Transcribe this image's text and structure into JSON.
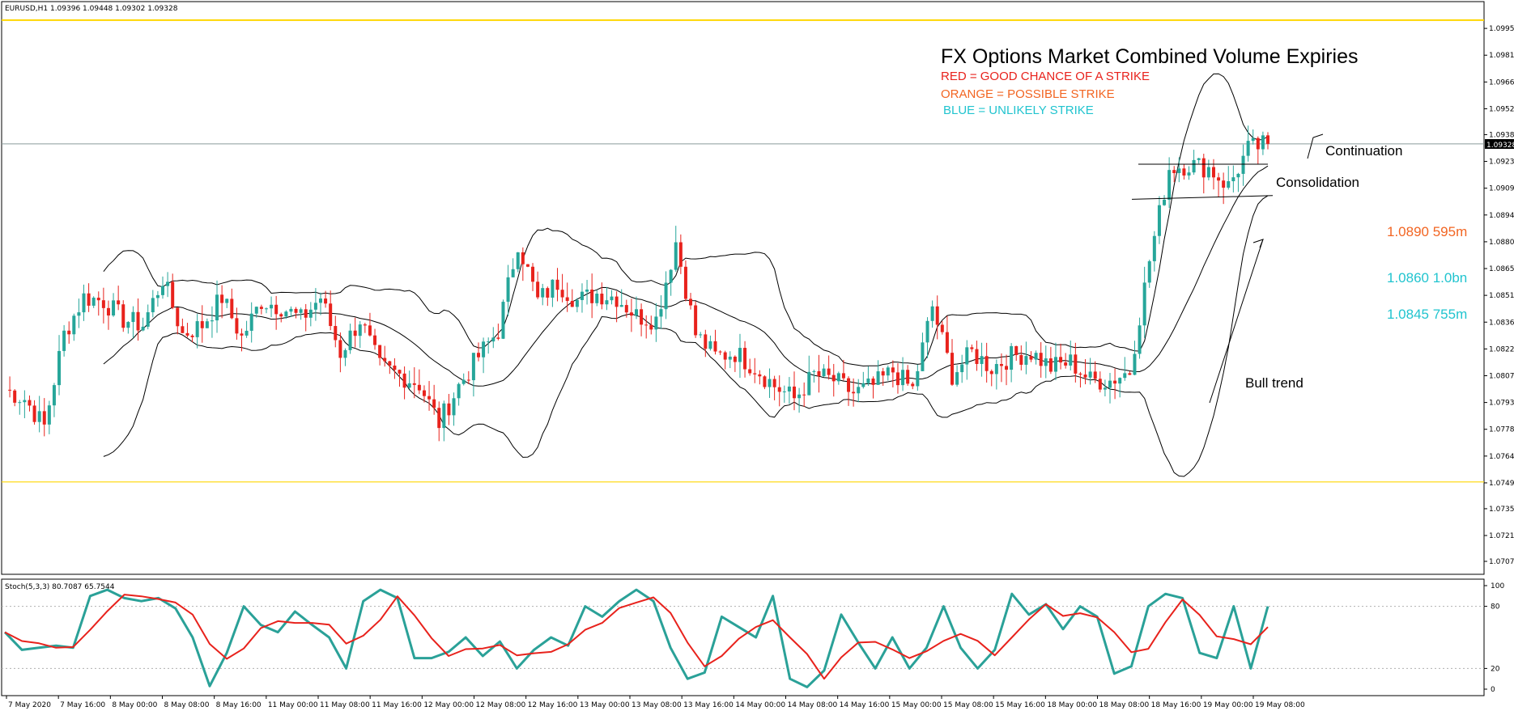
{
  "header": {
    "symbol_info": "EURUSD,H1  1.09396 1.09448 1.09302 1.09328"
  },
  "annotations": {
    "title": "FX Options Market Combined Volume Expiries",
    "legend_red": "RED = GOOD CHANCE OF A STRIKE",
    "legend_orange": "ORANGE = POSSIBLE STRIKE",
    "legend_blue": "BLUE = UNLIKELY STRIKE",
    "continuation": "Continuation",
    "consolidation": "Consolidation",
    "strike_1": "1.0890 595m",
    "strike_2": "1.0860 1.0bn",
    "strike_3": "1.0845 755m",
    "bull_trend": "Bull trend"
  },
  "colors": {
    "bull": "#26a69a",
    "bear": "#e8221c",
    "orange": "#f26522",
    "blue": "#21c4cf",
    "red": "#e8221c",
    "yellow_line": "#ffd600",
    "stoch_main": "#2aa198",
    "stoch_signal": "#e8221c"
  },
  "chart_data": [
    {
      "type": "candlestick",
      "symbol": "EURUSD",
      "timeframe": "H1",
      "current_price": "1.09328",
      "ylim": [
        1.07,
        1.101
      ],
      "yticks": [
        "1.09955",
        "1.09810",
        "1.09665",
        "1.09520",
        "1.09380",
        "1.09235",
        "1.09090",
        "1.08945",
        "1.08800",
        "1.08655",
        "1.08510",
        "1.08365",
        "1.08220",
        "1.08075",
        "1.07930",
        "1.07785",
        "1.07640",
        "1.07495",
        "1.07355",
        "1.07210",
        "1.07070"
      ],
      "xticks": [
        "7 May 2020",
        "7 May 16:00",
        "8 May 00:00",
        "8 May 08:00",
        "8 May 16:00",
        "11 May 00:00",
        "11 May 08:00",
        "11 May 16:00",
        "12 May 00:00",
        "12 May 08:00",
        "12 May 16:00",
        "13 May 00:00",
        "13 May 08:00",
        "13 May 16:00",
        "14 May 00:00",
        "14 May 08:00",
        "14 May 16:00",
        "15 May 00:00",
        "15 May 08:00",
        "15 May 16:00",
        "18 May 00:00",
        "18 May 08:00",
        "18 May 16:00",
        "19 May 00:00",
        "19 May 08:00"
      ],
      "horizontal_lines": [
        {
          "price": 1.1,
          "color": "yellow"
        },
        {
          "price": 1.075,
          "color": "yellow"
        },
        {
          "price": 1.0933,
          "color": "gray"
        }
      ],
      "close_path": [
        1.08,
        1.0795,
        1.078,
        1.083,
        1.085,
        1.0848,
        1.0838,
        1.0835,
        1.086,
        1.083,
        1.0835,
        1.085,
        1.0828,
        1.0848,
        1.0845,
        1.0838,
        1.085,
        1.082,
        1.0838,
        1.0812,
        1.0808,
        1.0803,
        1.0782,
        1.0802,
        1.0818,
        1.0832,
        1.088,
        1.0848,
        1.0858,
        1.0848,
        1.0852,
        1.085,
        1.084,
        1.0838,
        1.088,
        1.083,
        1.0818,
        1.082,
        1.0812,
        1.0802,
        1.0795,
        1.0808,
        1.0805,
        1.0798,
        1.0802,
        1.081,
        1.08,
        1.0845,
        1.0808,
        1.082,
        1.0812,
        1.0818,
        1.082,
        1.0812,
        1.0815,
        1.0805,
        1.0805,
        1.081,
        1.087,
        1.092,
        1.0922,
        1.092,
        1.091,
        1.093,
        1.0933
      ],
      "bollinger_bands": "20, 2",
      "bull_trend_line": "rising"
    },
    {
      "type": "line",
      "indicator": "Stoch(5,3,3)",
      "label": "Stoch(5,3,3) 80.7087 65.7544",
      "values": [
        80.7087,
        65.7544
      ],
      "ylim": [
        0,
        100
      ],
      "yticks": [
        "100",
        "80",
        "20",
        "0"
      ],
      "levels": [
        80,
        20
      ],
      "main_path": [
        55,
        38,
        40,
        42,
        40,
        90,
        96,
        88,
        85,
        88,
        78,
        50,
        3,
        35,
        80,
        62,
        55,
        75,
        62,
        50,
        20,
        85,
        96,
        88,
        30,
        30,
        36,
        50,
        32,
        46,
        20,
        38,
        50,
        42,
        80,
        70,
        85,
        96,
        85,
        40,
        10,
        16,
        70,
        60,
        50,
        90,
        10,
        2,
        18,
        72,
        45,
        20,
        50,
        20,
        40,
        80,
        40,
        20,
        38,
        92,
        72,
        82,
        58,
        80,
        70,
        15,
        22,
        80,
        92,
        88,
        35,
        30,
        80,
        20,
        80
      ]
    }
  ]
}
